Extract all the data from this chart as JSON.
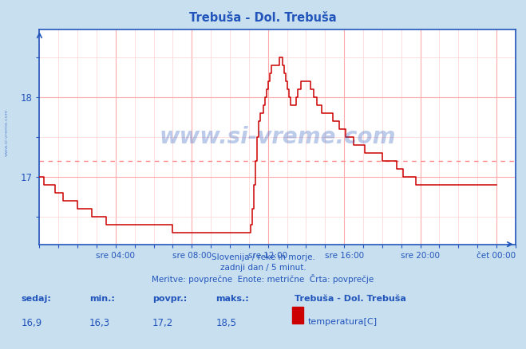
{
  "title": "Trebuša - Dol. Trebuša",
  "title_color": "#2255bb",
  "bg_color": "#c8dff0",
  "plot_bg_color": "#ffffff",
  "grid_color_major": "#ffaaaa",
  "grid_color_minor": "#ffd0d0",
  "line_color": "#cc0000",
  "avg_line_color": "#ff8888",
  "axis_color": "#2255bb",
  "tick_color": "#2255bb",
  "text_color": "#2255bb",
  "watermark_color": "#2255bb",
  "ylabel_side_text": "www.si-vreme.com",
  "xlabel_ticks": [
    "sre 04:00",
    "sre 08:00",
    "sre 12:00",
    "sre 16:00",
    "sre 20:00",
    "čet 00:00"
  ],
  "xlabel_tick_positions": [
    4,
    8,
    12,
    16,
    20,
    24
  ],
  "yticks": [
    17,
    18
  ],
  "ylim": [
    16.15,
    18.85
  ],
  "xlim": [
    0,
    25.0
  ],
  "avg_value": 17.2,
  "footer_line1": "Slovenija / reke in morje.",
  "footer_line2": "zadnji dan / 5 minut.",
  "footer_line3": "Meritve: povprečne  Enote: metrične  Črta: povprečje",
  "stat_labels": [
    "sedaj:",
    "min.:",
    "povpr.:",
    "maks.:"
  ],
  "stat_values": [
    "16,9",
    "16,3",
    "17,2",
    "18,5"
  ],
  "legend_title": "Trebuša - Dol. Trebuša",
  "legend_label": "temperatura[C]",
  "legend_color": "#cc0000",
  "temp_data": [
    17.0,
    17.0,
    17.0,
    16.9,
    16.9,
    16.9,
    16.9,
    16.9,
    16.9,
    16.9,
    16.8,
    16.8,
    16.8,
    16.8,
    16.8,
    16.7,
    16.7,
    16.7,
    16.7,
    16.7,
    16.7,
    16.7,
    16.7,
    16.7,
    16.6,
    16.6,
    16.6,
    16.6,
    16.6,
    16.6,
    16.6,
    16.6,
    16.6,
    16.5,
    16.5,
    16.5,
    16.5,
    16.5,
    16.5,
    16.5,
    16.5,
    16.5,
    16.4,
    16.4,
    16.4,
    16.4,
    16.4,
    16.4,
    16.4,
    16.4,
    16.4,
    16.4,
    16.4,
    16.4,
    16.4,
    16.4,
    16.4,
    16.4,
    16.4,
    16.4,
    16.4,
    16.4,
    16.4,
    16.4,
    16.4,
    16.4,
    16.4,
    16.4,
    16.4,
    16.4,
    16.4,
    16.4,
    16.4,
    16.4,
    16.4,
    16.4,
    16.4,
    16.4,
    16.4,
    16.4,
    16.4,
    16.4,
    16.4,
    16.4,
    16.3,
    16.3,
    16.3,
    16.3,
    16.3,
    16.3,
    16.3,
    16.3,
    16.3,
    16.3,
    16.3,
    16.3,
    16.3,
    16.3,
    16.3,
    16.3,
    16.3,
    16.3,
    16.3,
    16.3,
    16.3,
    16.3,
    16.3,
    16.3,
    16.3,
    16.3,
    16.3,
    16.3,
    16.3,
    16.3,
    16.3,
    16.3,
    16.3,
    16.3,
    16.3,
    16.3,
    16.3,
    16.3,
    16.3,
    16.3,
    16.3,
    16.3,
    16.3,
    16.3,
    16.3,
    16.3,
    16.3,
    16.3,
    16.3,
    16.4,
    16.6,
    16.9,
    17.2,
    17.5,
    17.7,
    17.8,
    17.8,
    17.9,
    18.0,
    18.1,
    18.2,
    18.3,
    18.4,
    18.4,
    18.4,
    18.4,
    18.4,
    18.5,
    18.5,
    18.4,
    18.3,
    18.2,
    18.1,
    18.0,
    17.9,
    17.9,
    17.9,
    17.9,
    18.0,
    18.1,
    18.1,
    18.2,
    18.2,
    18.2,
    18.2,
    18.2,
    18.2,
    18.1,
    18.1,
    18.0,
    18.0,
    17.9,
    17.9,
    17.9,
    17.8,
    17.8,
    17.8,
    17.8,
    17.8,
    17.8,
    17.8,
    17.7,
    17.7,
    17.7,
    17.7,
    17.6,
    17.6,
    17.6,
    17.6,
    17.5,
    17.5,
    17.5,
    17.5,
    17.5,
    17.4,
    17.4,
    17.4,
    17.4,
    17.4,
    17.4,
    17.4,
    17.3,
    17.3,
    17.3,
    17.3,
    17.3,
    17.3,
    17.3,
    17.3,
    17.3,
    17.3,
    17.3,
    17.2,
    17.2,
    17.2,
    17.2,
    17.2,
    17.2,
    17.2,
    17.2,
    17.2,
    17.1,
    17.1,
    17.1,
    17.1,
    17.0,
    17.0,
    17.0,
    17.0,
    17.0,
    17.0,
    17.0,
    17.0,
    16.9,
    16.9,
    16.9,
    16.9,
    16.9,
    16.9,
    16.9,
    16.9,
    16.9,
    16.9,
    16.9,
    16.9,
    16.9,
    16.9,
    16.9,
    16.9,
    16.9,
    16.9,
    16.9,
    16.9,
    16.9,
    16.9,
    16.9,
    16.9,
    16.9,
    16.9,
    16.9,
    16.9,
    16.9,
    16.9,
    16.9,
    16.9,
    16.9,
    16.9,
    16.9,
    16.9,
    16.9,
    16.9,
    16.9,
    16.9,
    16.9,
    16.9,
    16.9,
    16.9,
    16.9,
    16.9,
    16.9,
    16.9,
    16.9,
    16.9,
    16.9,
    16.9
  ]
}
